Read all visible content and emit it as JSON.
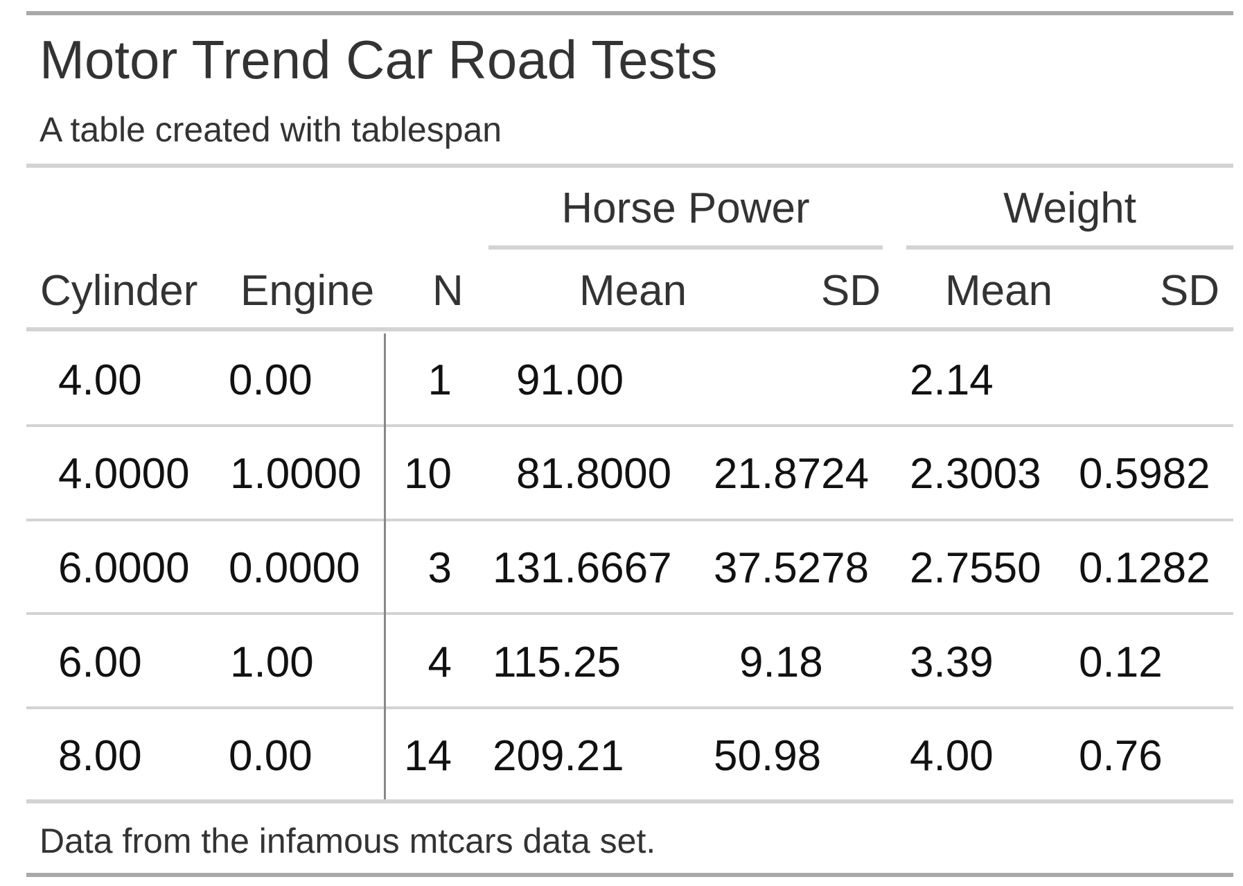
{
  "title": "Motor Trend Car Road Tests",
  "subtitle": "A table created with tablespan",
  "spanners": [
    "Horse Power",
    "Weight"
  ],
  "columns": [
    "Cylinder",
    "Engine",
    "N",
    "Mean",
    "SD",
    "Mean",
    "SD"
  ],
  "rows": [
    [
      "4.00",
      "0.00",
      "1",
      "91.00",
      "",
      "2.14",
      ""
    ],
    [
      "4.0000",
      "1.0000",
      "10",
      "81.8000",
      "21.8724",
      "2.3003",
      "0.5982"
    ],
    [
      "6.0000",
      "0.0000",
      "3",
      "131.6667",
      "37.5278",
      "2.7550",
      "0.1282"
    ],
    [
      "6.00",
      "1.00",
      "4",
      "115.25",
      "9.18",
      "3.39",
      "0.12"
    ],
    [
      "8.00",
      "0.00",
      "14",
      "209.21",
      "50.98",
      "4.00",
      "0.76"
    ]
  ],
  "footnote": "Data from the infamous mtcars data set.",
  "colors": {
    "rule_dark": "#a8a8a8",
    "rule_light": "#d3d3d3",
    "divider": "#888888",
    "text": "#333333"
  }
}
